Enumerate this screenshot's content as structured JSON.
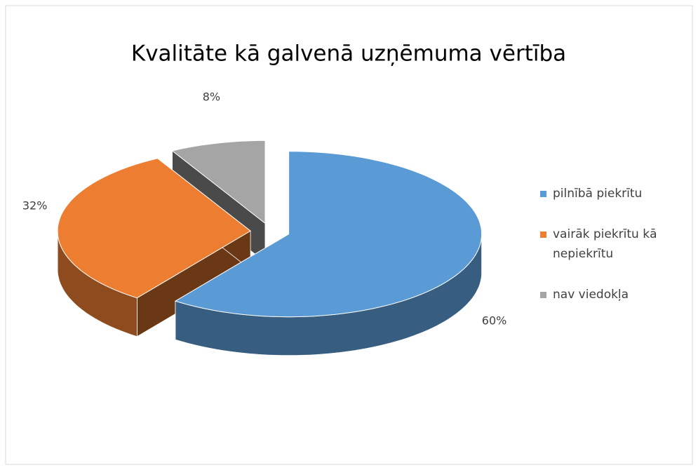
{
  "chart_data": {
    "type": "pie",
    "title": "Kvalitāte kā galvenā uzņēmuma vērtība",
    "categories": [
      "pilnībā piekrītu",
      "vairāk piekrītu kā nepiekrītu",
      "nav viedokļa"
    ],
    "values": [
      60,
      32,
      8
    ],
    "value_labels": [
      "60%",
      "32%",
      "8%"
    ],
    "colors": [
      "#5b9bd5",
      "#ed7d31",
      "#a5a5a5"
    ],
    "legend": "right"
  }
}
